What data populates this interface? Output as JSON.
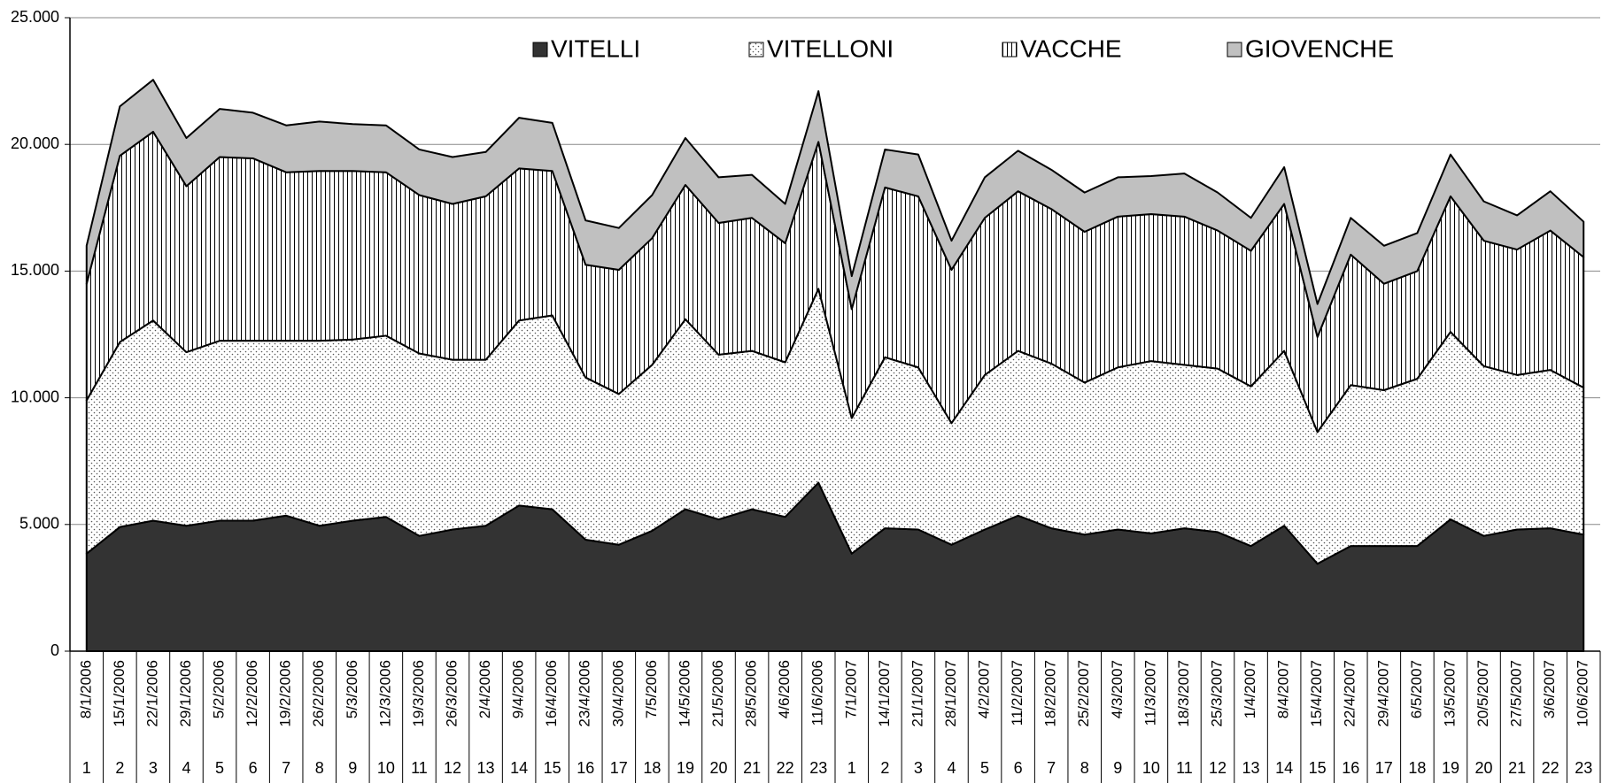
{
  "chart_data": {
    "type": "stacked-area",
    "categories": [
      "8/1/2006",
      "15/1/2006",
      "22/1/2006",
      "29/1/2006",
      "5/2/2006",
      "12/2/2006",
      "19/2/2006",
      "26/2/2006",
      "5/3/2006",
      "12/3/2006",
      "19/3/2006",
      "26/3/2006",
      "2/4/2006",
      "9/4/2006",
      "16/4/2006",
      "23/4/2006",
      "30/4/2006",
      "7/5/2006",
      "14/5/2006",
      "21/5/2006",
      "28/5/2006",
      "4/6/2006",
      "11/6/2006",
      "7/1/2007",
      "14/1/2007",
      "21/1/2007",
      "28/1/2007",
      "4/2/2007",
      "11/2/2007",
      "18/2/2007",
      "25/2/2007",
      "4/3/2007",
      "11/3/2007",
      "18/3/2007",
      "25/3/2007",
      "1/4/2007",
      "8/4/2007",
      "15/4/2007",
      "22/4/2007",
      "29/4/2007",
      "6/5/2007",
      "13/5/2007",
      "20/5/2007",
      "27/5/2007",
      "3/6/2007",
      "10/6/2007"
    ],
    "week_numbers": [
      1,
      2,
      3,
      4,
      5,
      6,
      7,
      8,
      9,
      10,
      11,
      12,
      13,
      14,
      15,
      16,
      17,
      18,
      19,
      20,
      21,
      22,
      23,
      1,
      2,
      3,
      4,
      5,
      6,
      7,
      8,
      9,
      10,
      11,
      12,
      13,
      14,
      15,
      16,
      17,
      18,
      19,
      20,
      21,
      22,
      23
    ],
    "series": [
      {
        "name": "VITELLI",
        "color": "#333333",
        "pattern": "solid",
        "values": [
          3850,
          4900,
          5150,
          4950,
          5150,
          5150,
          5350,
          4950,
          5150,
          5300,
          4550,
          4800,
          4950,
          5750,
          5600,
          4400,
          4200,
          4750,
          5600,
          5200,
          5600,
          5300,
          6650,
          3850,
          4850,
          4800,
          4200,
          4800,
          5350,
          4850,
          4600,
          4800,
          4650,
          4850,
          4700,
          4150,
          4950,
          3450,
          4150,
          4150,
          4150,
          5200,
          4550,
          4800,
          4850,
          4600
        ]
      },
      {
        "name": "VITELLONI",
        "color": "#ffffff",
        "pattern": "dots",
        "values": [
          6050,
          7300,
          7900,
          6850,
          7100,
          7100,
          6900,
          7300,
          7150,
          7150,
          7200,
          6700,
          6550,
          7300,
          7650,
          6400,
          5950,
          6550,
          7500,
          6500,
          6250,
          6100,
          7650,
          5350,
          6750,
          6400,
          4800,
          6100,
          6500,
          6500,
          6000,
          6400,
          6800,
          6450,
          6450,
          6300,
          6900,
          5200,
          6350,
          6150,
          6600,
          7400,
          6700,
          6100,
          6250,
          5800
        ]
      },
      {
        "name": "VACCHE",
        "color": "#ffffff",
        "pattern": "vertical-lines",
        "values": [
          4600,
          7350,
          7450,
          6550,
          7250,
          7200,
          6650,
          6700,
          6650,
          6450,
          6250,
          6150,
          6450,
          6000,
          5700,
          4450,
          4900,
          5000,
          5300,
          5200,
          5250,
          4700,
          5800,
          4300,
          6700,
          6750,
          6050,
          6200,
          6300,
          6100,
          5950,
          5950,
          5800,
          5850,
          5450,
          5350,
          5800,
          3750,
          5150,
          4200,
          4250,
          5350,
          4950,
          4950,
          5500,
          5150
        ]
      },
      {
        "name": "GIOVENCHE",
        "color": "#c0c0c0",
        "pattern": "solid",
        "values": [
          1500,
          1950,
          2050,
          1900,
          1900,
          1800,
          1850,
          1950,
          1850,
          1850,
          1800,
          1850,
          1750,
          2000,
          1900,
          1750,
          1650,
          1700,
          1850,
          1800,
          1700,
          1550,
          2000,
          1300,
          1500,
          1650,
          1150,
          1600,
          1600,
          1550,
          1550,
          1550,
          1500,
          1700,
          1500,
          1300,
          1450,
          1300,
          1450,
          1500,
          1500,
          1650,
          1550,
          1350,
          1550,
          1400
        ]
      }
    ],
    "ylim": [
      0,
      25000
    ],
    "yticks": [
      0,
      {
        "value": 5000,
        "label": "5.000"
      },
      {
        "value": 10000,
        "label": "10.000"
      },
      {
        "value": 15000,
        "label": "15.000"
      },
      {
        "value": 20000,
        "label": "20.000"
      },
      {
        "value": 25000,
        "label": "25.000"
      }
    ],
    "grid": true,
    "legend": "top"
  }
}
